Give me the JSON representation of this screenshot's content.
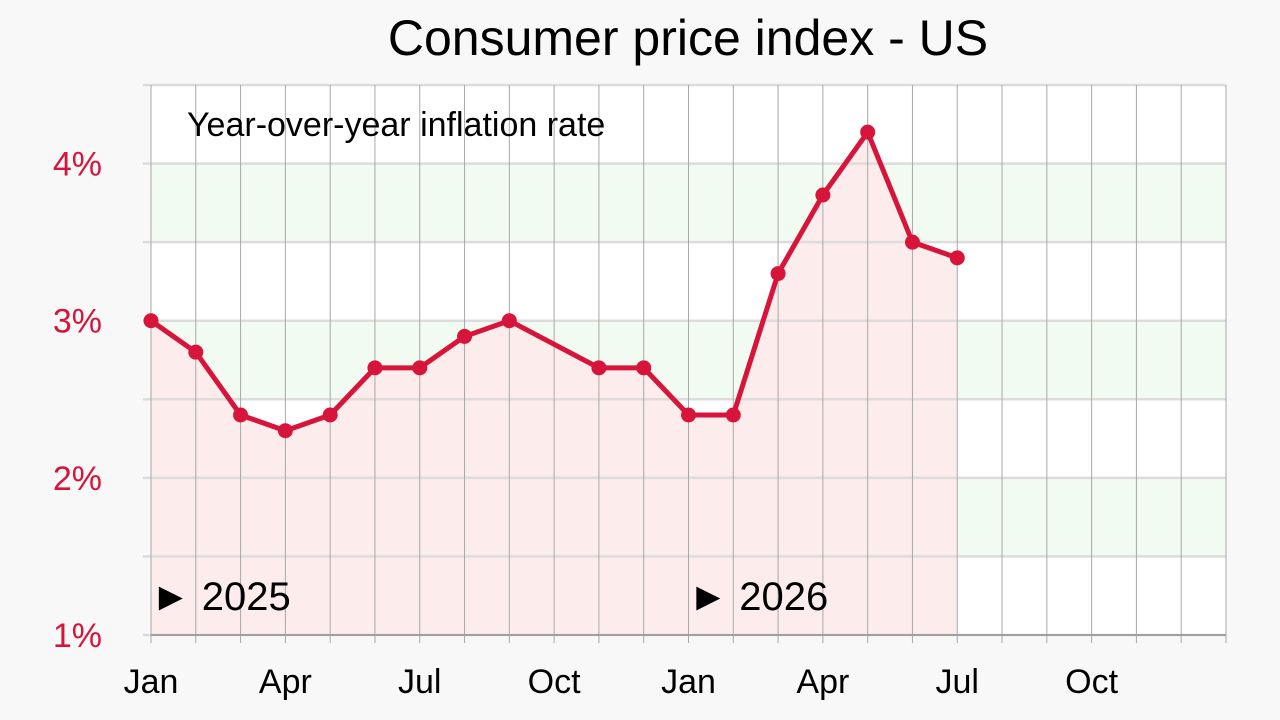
{
  "chart_data": {
    "type": "line",
    "title": "Consumer price index - US",
    "subtitle": "Year-over-year inflation rate",
    "xlabel": "",
    "ylabel": "",
    "ylim": [
      1,
      4.5
    ],
    "y_ticks": [
      {
        "value": 1,
        "label": "1%"
      },
      {
        "value": 2,
        "label": "2%"
      },
      {
        "value": 3,
        "label": "3%"
      },
      {
        "value": 4,
        "label": "4%"
      }
    ],
    "x_month_range": [
      0,
      23
    ],
    "x_ticks": [
      {
        "month": 0,
        "label": "Jan"
      },
      {
        "month": 3,
        "label": "Apr"
      },
      {
        "month": 6,
        "label": "Jul"
      },
      {
        "month": 9,
        "label": "Oct"
      },
      {
        "month": 12,
        "label": "Jan"
      },
      {
        "month": 15,
        "label": "Apr"
      },
      {
        "month": 18,
        "label": "Jul"
      },
      {
        "month": 21,
        "label": "Oct"
      }
    ],
    "year_markers": [
      {
        "month": 0,
        "label": "► 2025"
      },
      {
        "month": 12,
        "label": "► 2026"
      }
    ],
    "grid": true,
    "series": [
      {
        "name": "",
        "color": "#d7153a",
        "months": [
          0,
          1,
          2,
          3,
          4,
          5,
          6,
          7,
          8,
          10,
          11,
          12,
          13,
          14,
          15,
          16,
          17,
          18
        ],
        "values": [
          3.0,
          2.8,
          2.4,
          2.3,
          2.4,
          2.7,
          2.7,
          2.9,
          3.0,
          2.7,
          2.7,
          2.4,
          2.4,
          3.3,
          3.8,
          4.2,
          3.5,
          3.4
        ]
      }
    ],
    "area_fill_color": "#fdecec",
    "band_color": "#f1fbf1"
  }
}
